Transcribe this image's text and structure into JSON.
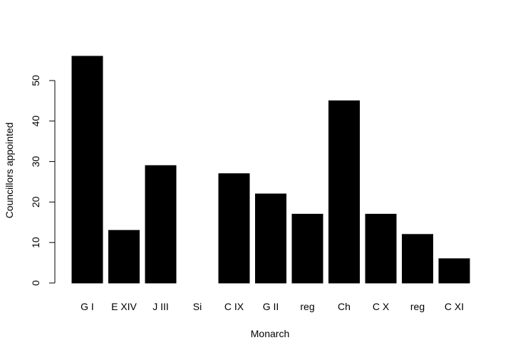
{
  "chart_data": {
    "type": "bar",
    "categories": [
      "G I",
      "E XIV",
      "J III",
      "Si",
      "C IX",
      "G II",
      "reg",
      "Ch",
      "C X",
      "reg",
      "C XI"
    ],
    "values": [
      56,
      13,
      29,
      0,
      27,
      22,
      17,
      45,
      17,
      12,
      6
    ],
    "title": "",
    "xlabel": "Monarch",
    "ylabel": "Councillors appointed",
    "ylim": [
      0,
      56
    ],
    "yticks": [
      0,
      10,
      20,
      30,
      40,
      50
    ],
    "grid": false,
    "legend": "none",
    "bar_color": "#000000"
  }
}
